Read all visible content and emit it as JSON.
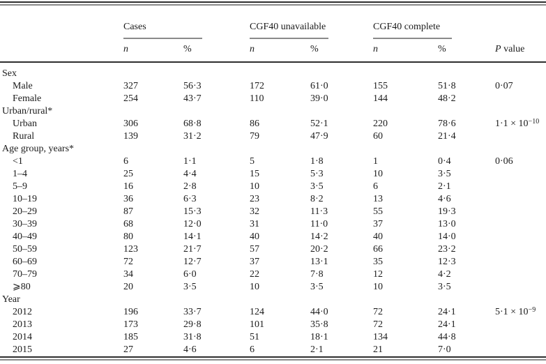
{
  "table": {
    "col_groups": [
      {
        "label": "Cases"
      },
      {
        "label": "CGF40 unavailable"
      },
      {
        "label": "CGF40 complete"
      }
    ],
    "sub_headers": {
      "n": "n",
      "pct": "%"
    },
    "p_header": {
      "italic": "P",
      "rest": " value"
    },
    "rows": [
      {
        "type": "section",
        "label": "Sex"
      },
      {
        "type": "item",
        "label": "Male",
        "cells": [
          "327",
          "56·3",
          "172",
          "61·0",
          "155",
          "51·8"
        ],
        "p": "0·07",
        "p_sup": ""
      },
      {
        "type": "item",
        "label": "Female",
        "cells": [
          "254",
          "43·7",
          "110",
          "39·0",
          "144",
          "48·2"
        ],
        "p": "",
        "p_sup": ""
      },
      {
        "type": "section",
        "label": "Urban/rural*"
      },
      {
        "type": "item",
        "label": "Urban",
        "cells": [
          "306",
          "68·8",
          "86",
          "52·1",
          "220",
          "78·6"
        ],
        "p": "1·1 × 10",
        "p_sup": "−10"
      },
      {
        "type": "item",
        "label": "Rural",
        "cells": [
          "139",
          "31·2",
          "79",
          "47·9",
          "60",
          "21·4"
        ],
        "p": "",
        "p_sup": ""
      },
      {
        "type": "section",
        "label": "Age group, years*"
      },
      {
        "type": "item",
        "label": "<1",
        "cells": [
          "6",
          "1·1",
          "5",
          "1·8",
          "1",
          "0·4"
        ],
        "p": "0·06",
        "p_sup": ""
      },
      {
        "type": "item",
        "label": "1–4",
        "cells": [
          "25",
          "4·4",
          "15",
          "5·3",
          "10",
          "3·5"
        ],
        "p": "",
        "p_sup": ""
      },
      {
        "type": "item",
        "label": "5–9",
        "cells": [
          "16",
          "2·8",
          "10",
          "3·5",
          "6",
          "2·1"
        ],
        "p": "",
        "p_sup": ""
      },
      {
        "type": "item",
        "label": "10–19",
        "cells": [
          "36",
          "6·3",
          "23",
          "8·2",
          "13",
          "4·6"
        ],
        "p": "",
        "p_sup": ""
      },
      {
        "type": "item",
        "label": "20–29",
        "cells": [
          "87",
          "15·3",
          "32",
          "11·3",
          "55",
          "19·3"
        ],
        "p": "",
        "p_sup": ""
      },
      {
        "type": "item",
        "label": "30–39",
        "cells": [
          "68",
          "12·0",
          "31",
          "11·0",
          "37",
          "13·0"
        ],
        "p": "",
        "p_sup": ""
      },
      {
        "type": "item",
        "label": "40–49",
        "cells": [
          "80",
          "14·1",
          "40",
          "14·2",
          "40",
          "14·0"
        ],
        "p": "",
        "p_sup": ""
      },
      {
        "type": "item",
        "label": "50–59",
        "cells": [
          "123",
          "21·7",
          "57",
          "20·2",
          "66",
          "23·2"
        ],
        "p": "",
        "p_sup": ""
      },
      {
        "type": "item",
        "label": "60–69",
        "cells": [
          "72",
          "12·7",
          "37",
          "13·1",
          "35",
          "12·3"
        ],
        "p": "",
        "p_sup": ""
      },
      {
        "type": "item",
        "label": "70–79",
        "cells": [
          "34",
          "6·0",
          "22",
          "7·8",
          "12",
          "4·2"
        ],
        "p": "",
        "p_sup": ""
      },
      {
        "type": "item",
        "label": "⩾80",
        "cells": [
          "20",
          "3·5",
          "10",
          "3·5",
          "10",
          "3·5"
        ],
        "p": "",
        "p_sup": ""
      },
      {
        "type": "section",
        "label": "Year"
      },
      {
        "type": "item",
        "label": "2012",
        "cells": [
          "196",
          "33·7",
          "124",
          "44·0",
          "72",
          "24·1"
        ],
        "p": "5·1 × 10",
        "p_sup": "−9"
      },
      {
        "type": "item",
        "label": "2013",
        "cells": [
          "173",
          "29·8",
          "101",
          "35·8",
          "72",
          "24·1"
        ],
        "p": "",
        "p_sup": ""
      },
      {
        "type": "item",
        "label": "2014",
        "cells": [
          "185",
          "31·8",
          "51",
          "18·1",
          "134",
          "44·8"
        ],
        "p": "",
        "p_sup": ""
      },
      {
        "type": "item",
        "label": "2015",
        "cells": [
          "27",
          "4·6",
          "6",
          "2·1",
          "21",
          "7·0"
        ],
        "p": "",
        "p_sup": ""
      }
    ]
  }
}
